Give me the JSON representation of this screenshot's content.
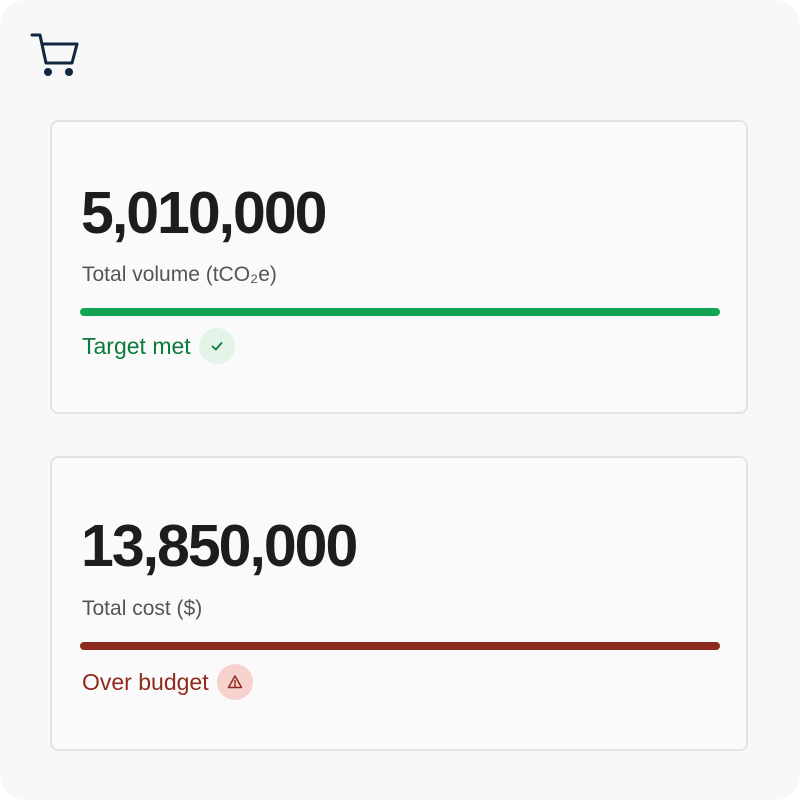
{
  "cards": [
    {
      "value": "5,010,000",
      "label": "Total volume (tCO₂e)",
      "progress_fraction": 1.0,
      "bar_color": "#12a354",
      "status": "Target met",
      "status_color": "#0c7a3c",
      "status_icon": "check-icon",
      "badge_color": "#e2f3e8"
    },
    {
      "value": "13,850,000",
      "label": "Total cost ($)",
      "progress_fraction": 1.0,
      "bar_color": "#8b2a1d",
      "status": "Over budget",
      "status_color": "#8f2a1c",
      "status_icon": "warning-icon",
      "badge_color": "#f6d2cd"
    }
  ],
  "header": {
    "icon": "shopping-cart-icon",
    "icon_color": "#12263f"
  }
}
